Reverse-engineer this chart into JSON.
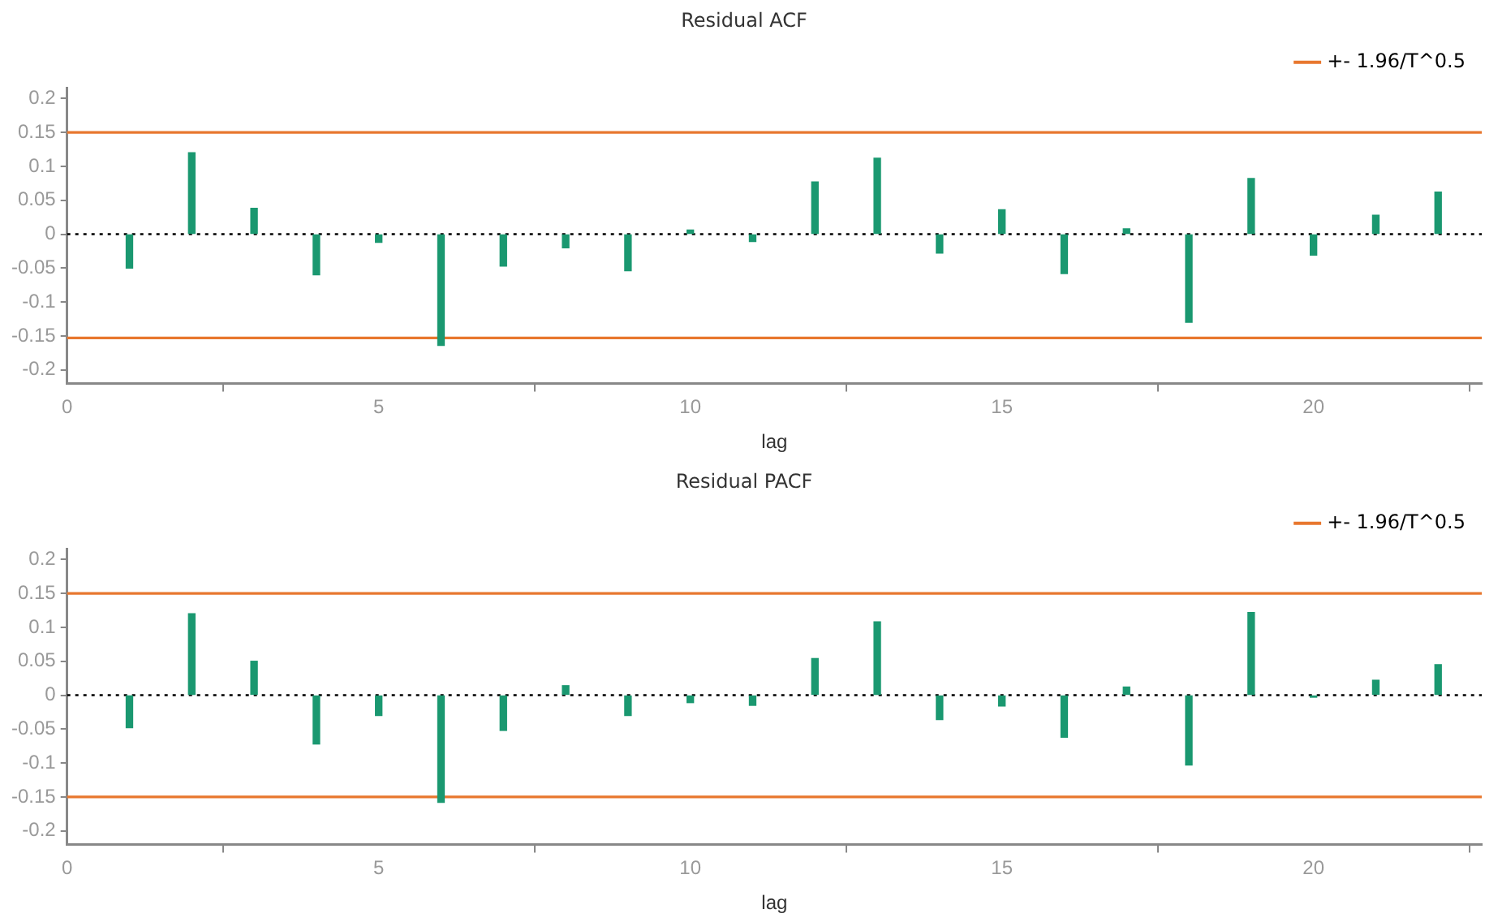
{
  "chart_data": [
    {
      "type": "bar",
      "title": "Residual ACF",
      "xlabel": "lag",
      "x": [
        1,
        2,
        3,
        4,
        5,
        6,
        7,
        8,
        9,
        10,
        11,
        12,
        13,
        14,
        15,
        16,
        17,
        18,
        19,
        20,
        21,
        22
      ],
      "series": [
        {
          "color": "#1a9870",
          "values": [
            -0.05,
            0.12,
            0.038,
            -0.06,
            -0.012,
            -0.164,
            -0.047,
            -0.02,
            -0.054,
            0.006,
            -0.011,
            0.077,
            0.112,
            -0.028,
            0.036,
            -0.058,
            0.008,
            -0.13,
            0.082,
            -0.031,
            0.028,
            0.062
          ]
        }
      ],
      "xlim": [
        0,
        22.7
      ],
      "xticks": [
        0,
        5,
        10,
        15,
        20
      ],
      "ylim": [
        -0.22,
        0.215
      ],
      "yticks": [
        -0.2,
        -0.15,
        -0.1,
        -0.05,
        0,
        0.05,
        0.1,
        0.15,
        0.2
      ],
      "ref_lines": [
        {
          "axis": "y",
          "value": 0.15,
          "label": "+- 1.96/T^0.5",
          "color": "#e8772e",
          "line_style": "solid"
        },
        {
          "axis": "y",
          "value": -0.153,
          "color": "#e8772e",
          "line_style": "solid"
        },
        {
          "axis": "y",
          "value": 0,
          "color": "#000000",
          "line_style": "dotted"
        }
      ],
      "grid": false,
      "legend": "top right"
    },
    {
      "type": "bar",
      "title": "Residual PACF",
      "xlabel": "lag",
      "x": [
        1,
        2,
        3,
        4,
        5,
        6,
        7,
        8,
        9,
        10,
        11,
        12,
        13,
        14,
        15,
        16,
        17,
        18,
        19,
        20,
        21,
        22
      ],
      "series": [
        {
          "color": "#1a9870",
          "values": [
            -0.048,
            0.12,
            0.05,
            -0.072,
            -0.03,
            -0.158,
            -0.052,
            0.014,
            -0.03,
            -0.011,
            -0.015,
            0.054,
            0.108,
            -0.036,
            -0.016,
            -0.062,
            0.012,
            -0.103,
            0.122,
            -0.003,
            0.022,
            0.045
          ]
        }
      ],
      "xlim": [
        0,
        22.7
      ],
      "xticks": [
        0,
        5,
        10,
        15,
        20
      ],
      "ylim": [
        -0.22,
        0.215
      ],
      "yticks": [
        -0.2,
        -0.15,
        -0.1,
        -0.05,
        0,
        0.05,
        0.1,
        0.15,
        0.2
      ],
      "ref_lines": [
        {
          "axis": "y",
          "value": 0.15,
          "label": "+- 1.96/T^0.5",
          "color": "#e8772e",
          "line_style": "solid"
        },
        {
          "axis": "y",
          "value": -0.15,
          "color": "#e8772e",
          "line_style": "solid"
        },
        {
          "axis": "y",
          "value": 0,
          "color": "#000000",
          "line_style": "dotted"
        }
      ],
      "grid": false,
      "legend": "top right"
    }
  ]
}
